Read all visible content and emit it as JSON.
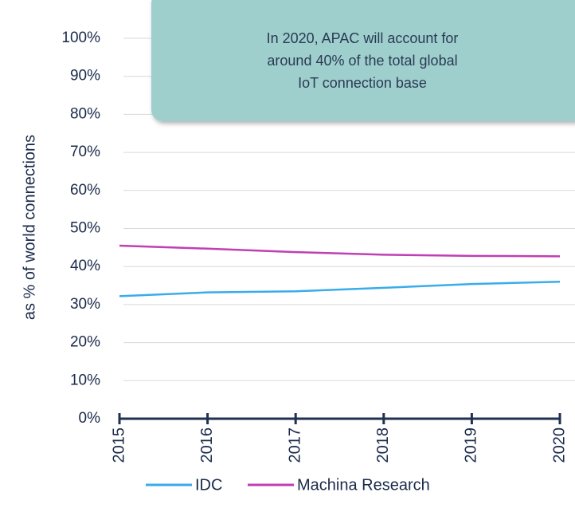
{
  "chart_data": {
    "type": "line",
    "ylabel": "as % of world connections",
    "annotation": [
      "In 2020, APAC will account for",
      "around 40% of the total global",
      "IoT connection base"
    ],
    "categories": [
      "2015",
      "2016",
      "2017",
      "2018",
      "2019",
      "2020"
    ],
    "series": [
      {
        "name": "IDC",
        "color": "#3aacea",
        "values": [
          32.2,
          33.2,
          33.5,
          34.4,
          35.4,
          36.0
        ]
      },
      {
        "name": "Machina Research",
        "color": "#c03fb3",
        "values": [
          45.5,
          44.7,
          43.8,
          43.1,
          42.8,
          42.7
        ]
      }
    ],
    "ylim": [
      0,
      100
    ],
    "yticks": [
      {
        "value": 0,
        "label": "0%"
      },
      {
        "value": 10,
        "label": "10%"
      },
      {
        "value": 20,
        "label": "20%"
      },
      {
        "value": 30,
        "label": "30%"
      },
      {
        "value": 40,
        "label": "40%"
      },
      {
        "value": 50,
        "label": "50%"
      },
      {
        "value": 60,
        "label": "60%"
      },
      {
        "value": 70,
        "label": "70%"
      },
      {
        "value": 80,
        "label": "80%"
      },
      {
        "value": 90,
        "label": "90%"
      },
      {
        "value": 100,
        "label": "100%"
      }
    ],
    "grid": true,
    "legend": "bottom"
  }
}
